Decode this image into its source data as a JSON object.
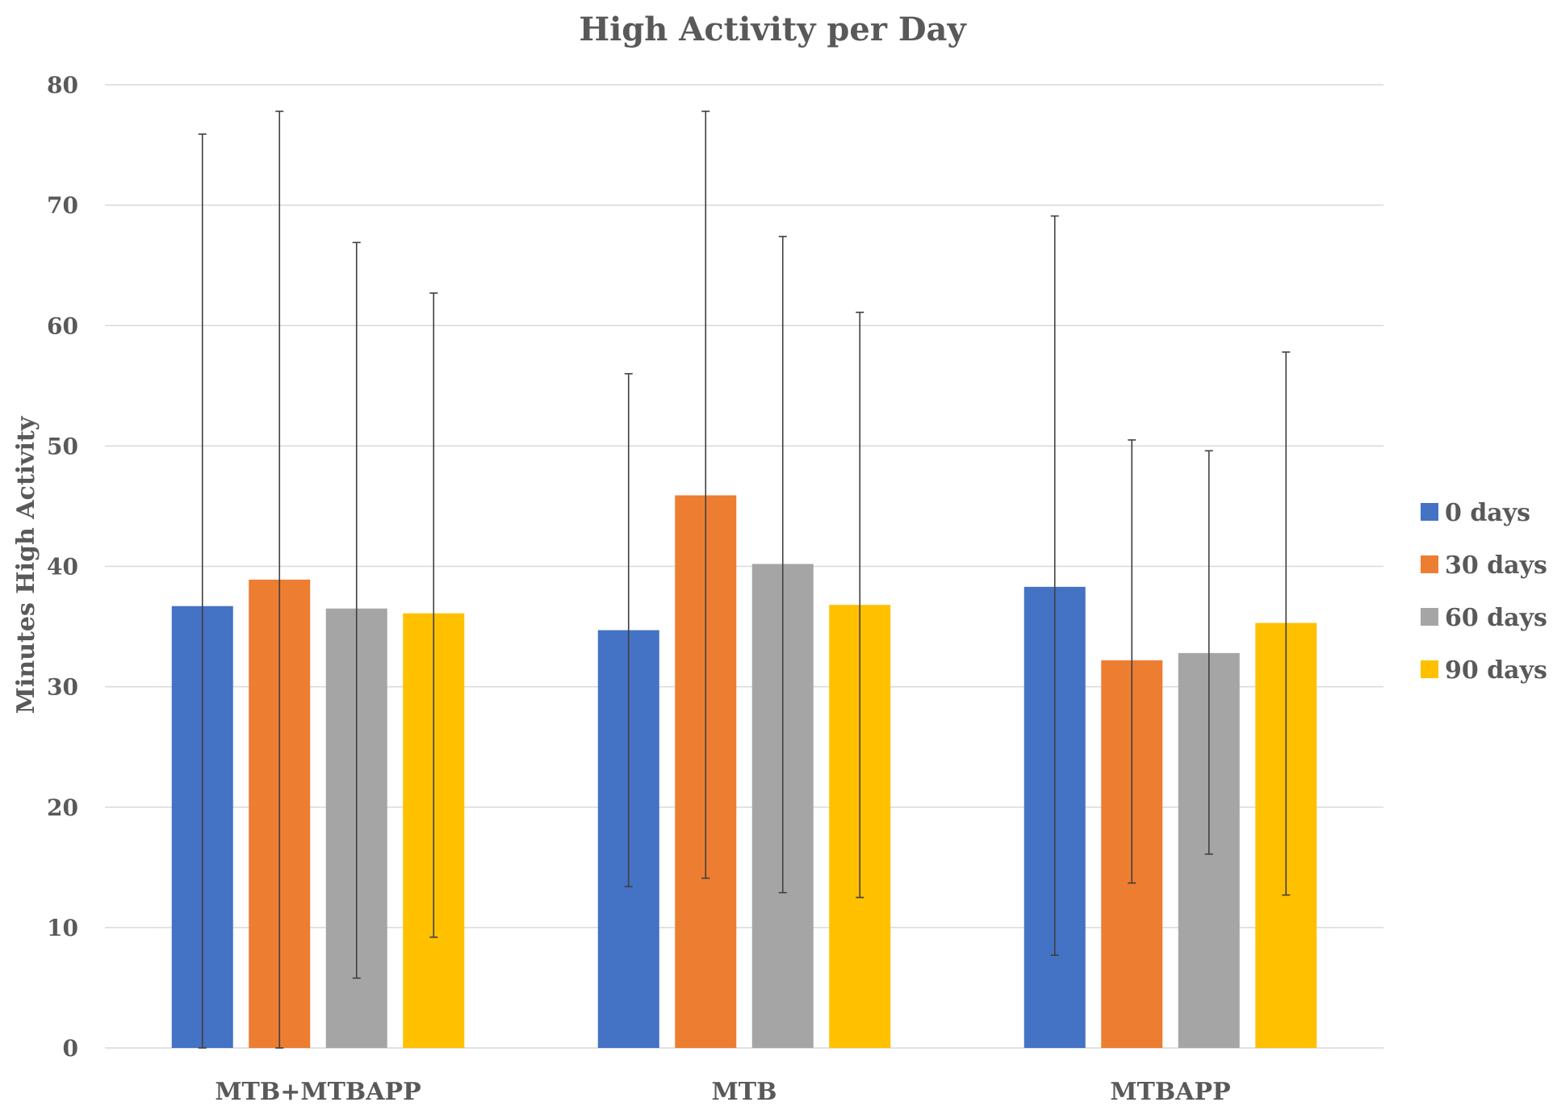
{
  "chart_data": {
    "type": "bar",
    "title": "High Activity per Day",
    "xlabel": "",
    "ylabel": "Minutes High Activity",
    "ylim": [
      0,
      80
    ],
    "yticks": [
      0,
      10,
      20,
      30,
      40,
      50,
      60,
      70,
      80
    ],
    "grid": true,
    "legend_position": "right",
    "categories": [
      "MTB+MTBAPP",
      "MTB",
      "MTBAPP"
    ],
    "series": [
      {
        "name": "0 days",
        "color": "#4472C4",
        "values": [
          36.7,
          34.7,
          38.3
        ],
        "err_low": [
          0,
          13.4,
          7.7
        ],
        "err_high": [
          75.9,
          56.0,
          69.1
        ]
      },
      {
        "name": "30 days",
        "color": "#ED7D31",
        "values": [
          38.9,
          45.9,
          32.2
        ],
        "err_low": [
          0,
          14.1,
          13.7
        ],
        "err_high": [
          77.8,
          77.8,
          50.5
        ]
      },
      {
        "name": "60 days",
        "color": "#A5A5A5",
        "values": [
          36.5,
          40.2,
          32.8
        ],
        "err_low": [
          5.8,
          12.9,
          16.1
        ],
        "err_high": [
          66.9,
          67.4,
          49.6
        ]
      },
      {
        "name": "90 days",
        "color": "#FFC000",
        "values": [
          36.1,
          36.8,
          35.3
        ],
        "err_low": [
          9.2,
          12.5,
          12.7
        ],
        "err_high": [
          62.7,
          61.1,
          57.8
        ]
      }
    ]
  }
}
